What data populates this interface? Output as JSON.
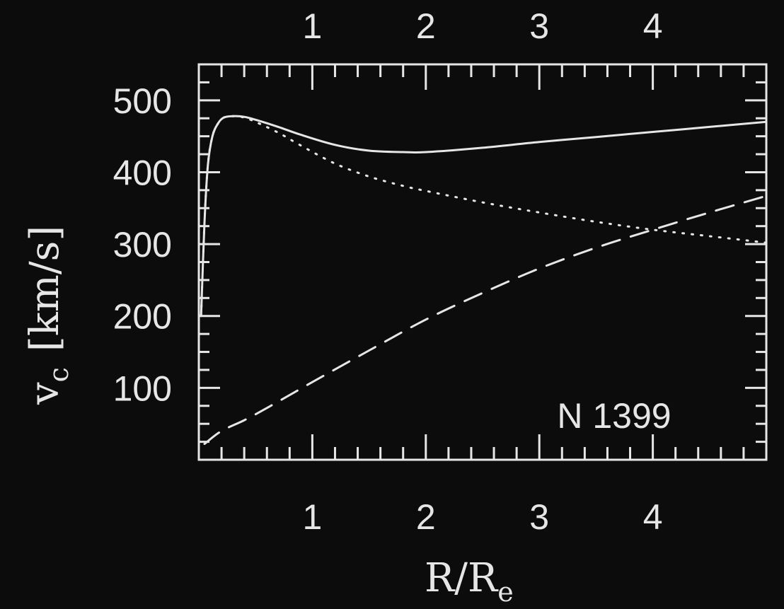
{
  "chart_data": {
    "type": "line",
    "annotation": "N 1399",
    "xlabel": "R/R",
    "xlabel_sub": "e",
    "ylabel": "v",
    "ylabel_sub": "c",
    "ylabel_units": "[km/s]",
    "xlim": [
      0,
      5
    ],
    "ylim": [
      0,
      550
    ],
    "x_ticks": [
      1,
      2,
      3,
      4
    ],
    "x_tick_labels": [
      "1",
      "2",
      "3",
      "4"
    ],
    "top_tick_labels": [
      "1",
      "2",
      "3",
      "4"
    ],
    "y_ticks": [
      100,
      200,
      300,
      400,
      500
    ],
    "y_tick_labels": [
      "100",
      "200",
      "300",
      "400",
      "500"
    ],
    "series": [
      {
        "style": "solid",
        "x": [
          0.02,
          0.05,
          0.08,
          0.12,
          0.17,
          0.22,
          0.3,
          0.4,
          0.5,
          0.7,
          0.9,
          1.2,
          1.5,
          1.8,
          2.0,
          2.5,
          3.0,
          3.5,
          4.0,
          4.5,
          5.0
        ],
        "y": [
          200,
          330,
          410,
          450,
          468,
          476,
          478,
          477,
          473,
          463,
          452,
          438,
          430,
          428,
          428,
          434,
          442,
          449,
          456,
          463,
          470
        ]
      },
      {
        "style": "dotted",
        "x": [
          0.02,
          0.05,
          0.08,
          0.12,
          0.17,
          0.22,
          0.3,
          0.4,
          0.5,
          0.7,
          0.9,
          1.2,
          1.5,
          1.8,
          2.0,
          2.5,
          3.0,
          3.5,
          4.0,
          4.5,
          5.0
        ],
        "y": [
          200,
          330,
          410,
          450,
          468,
          476,
          478,
          476,
          470,
          455,
          437,
          412,
          394,
          381,
          374,
          358,
          344,
          331,
          320,
          311,
          302
        ]
      },
      {
        "style": "dashed",
        "x": [
          0.05,
          0.2,
          0.4,
          0.6,
          1.0,
          1.5,
          2.0,
          2.5,
          3.0,
          3.5,
          4.0,
          4.5,
          5.0
        ],
        "y": [
          22,
          40,
          55,
          72,
          108,
          152,
          195,
          232,
          266,
          295,
          320,
          344,
          367
        ]
      }
    ]
  }
}
